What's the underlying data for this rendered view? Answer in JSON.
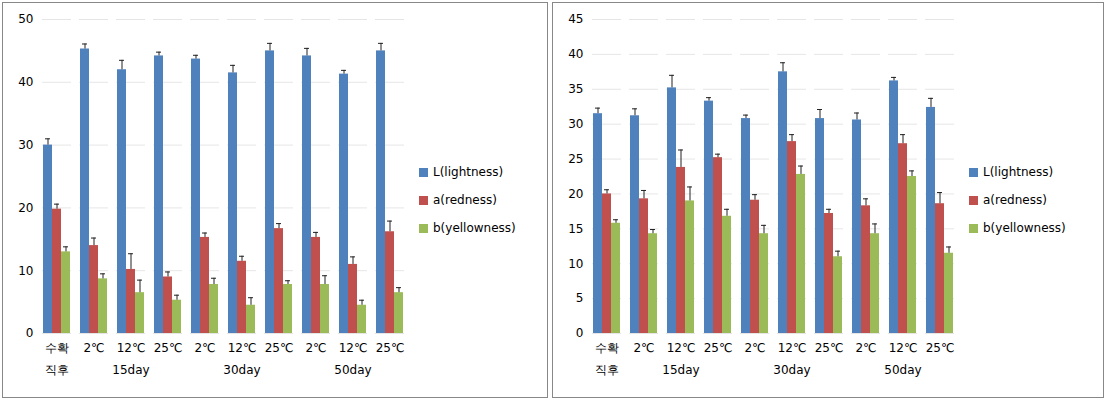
{
  "chart_data": [
    {
      "type": "bar",
      "grid": true,
      "legend": "right",
      "data_labels": false,
      "categories": [
        "수확",
        "2℃",
        "12℃",
        "25℃",
        "2℃",
        "12℃",
        "25℃",
        "2℃",
        "12℃",
        "25℃"
      ],
      "groups": [
        "직후",
        "15day",
        "15day",
        "15day",
        "30day",
        "30day",
        "30day",
        "50day",
        "50day",
        "50day"
      ],
      "ylim": [
        0,
        50
      ],
      "yticks": [
        0,
        10,
        20,
        30,
        40,
        50
      ],
      "series": [
        {
          "name": "L(lightness)",
          "color": "#4f81bd",
          "values": [
            30,
            45.3,
            42,
            44.2,
            43.7,
            41.5,
            45,
            44.2,
            41.3,
            45
          ],
          "errors": [
            1,
            0.8,
            1.5,
            0.6,
            0.6,
            1.2,
            1.2,
            1.2,
            0.6,
            1.2
          ]
        },
        {
          "name": "a(redness)",
          "color": "#c0504d",
          "values": [
            19.8,
            14,
            10.2,
            9,
            15.3,
            11.5,
            16.7,
            15.3,
            11,
            16.2
          ],
          "errors": [
            0.8,
            1.2,
            2.5,
            0.8,
            0.7,
            0.8,
            0.8,
            0.8,
            1.2,
            1.7
          ]
        },
        {
          "name": "b(yellowness)",
          "color": "#9bbb59",
          "values": [
            13,
            8.7,
            6.5,
            5.3,
            7.8,
            4.5,
            7.8,
            7.8,
            4.5,
            6.5
          ],
          "errors": [
            0.8,
            0.8,
            2,
            0.8,
            1,
            1.2,
            0.6,
            1.4,
            0.8,
            0.8
          ]
        }
      ]
    },
    {
      "type": "bar",
      "grid": true,
      "legend": "right",
      "data_labels": false,
      "categories": [
        "수확",
        "2℃",
        "12℃",
        "25℃",
        "2℃",
        "12℃",
        "25℃",
        "2℃",
        "12℃",
        "25℃"
      ],
      "groups": [
        "직후",
        "15day",
        "15day",
        "15day",
        "30day",
        "30day",
        "30day",
        "50day",
        "50day",
        "50day"
      ],
      "ylim": [
        0,
        45
      ],
      "yticks": [
        0,
        5,
        10,
        15,
        20,
        25,
        30,
        35,
        40,
        45
      ],
      "series": [
        {
          "name": "L(lightness)",
          "color": "#4f81bd",
          "values": [
            31.5,
            31.2,
            35.2,
            33.3,
            30.8,
            37.5,
            30.8,
            30.6,
            36.2,
            32.4
          ],
          "errors": [
            0.8,
            1,
            1.8,
            0.5,
            0.5,
            1.3,
            1.3,
            1,
            0.5,
            1.3
          ]
        },
        {
          "name": "a(redness)",
          "color": "#c0504d",
          "values": [
            20,
            19.3,
            23.8,
            25.2,
            19.1,
            27.5,
            17.2,
            18.3,
            27.2,
            18.6
          ],
          "errors": [
            0.6,
            1.2,
            2.5,
            0.5,
            0.8,
            1,
            0.6,
            1,
            1.3,
            1.6
          ]
        },
        {
          "name": "b(yellowness)",
          "color": "#9bbb59",
          "values": [
            15.8,
            14.3,
            19,
            16.8,
            14.3,
            22.8,
            11,
            14.3,
            22.5,
            11.5
          ],
          "errors": [
            0.5,
            0.6,
            2,
            1,
            1.2,
            1.2,
            0.8,
            1.4,
            0.8,
            0.9
          ]
        }
      ]
    }
  ]
}
